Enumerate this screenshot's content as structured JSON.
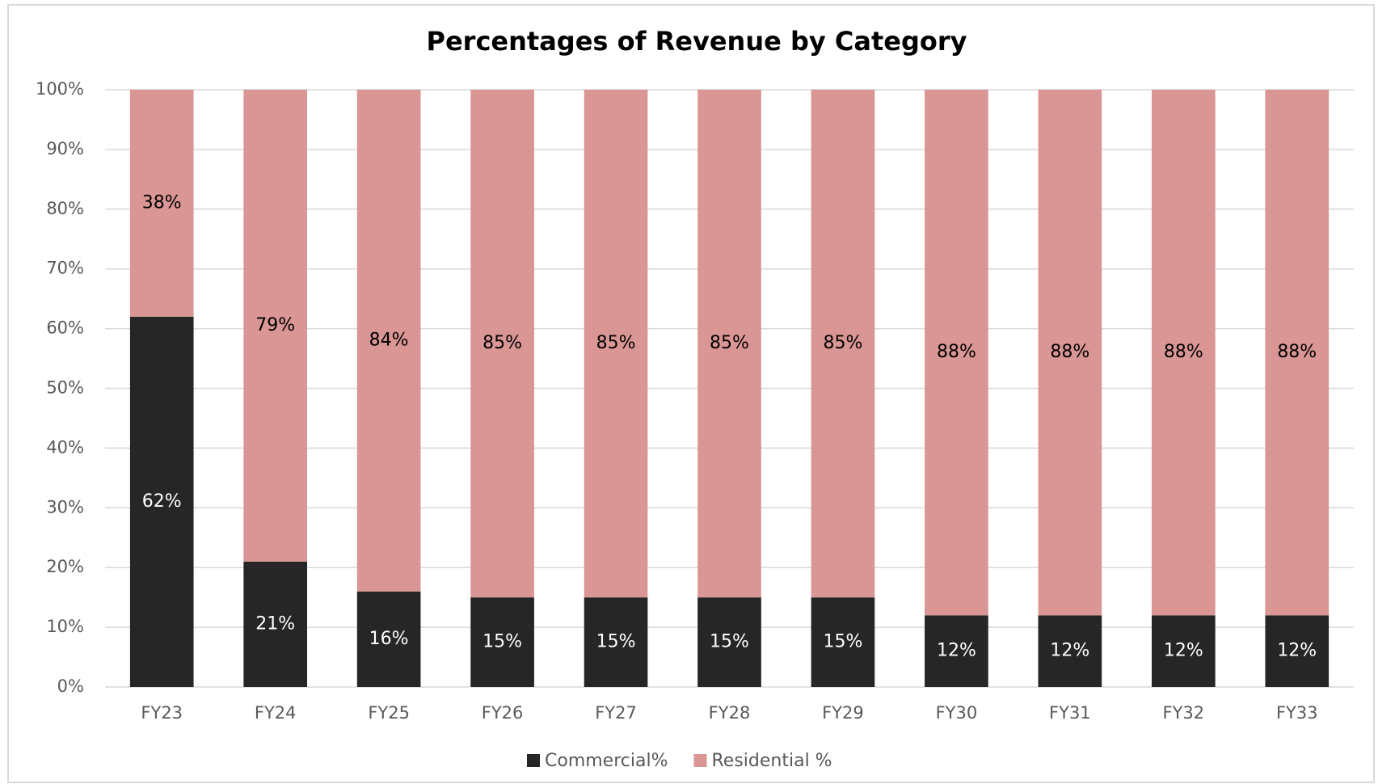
{
  "chart_data": {
    "type": "stacked_bar",
    "title": "Percentages of Revenue by Category",
    "categories": [
      "FY23",
      "FY24",
      "FY25",
      "FY26",
      "FY27",
      "FY28",
      "FY29",
      "FY30",
      "FY31",
      "FY32",
      "FY33"
    ],
    "series": [
      {
        "name": "Commercial%",
        "color": "#262626",
        "values": [
          62,
          21,
          16,
          15,
          15,
          15,
          15,
          12,
          12,
          12,
          12
        ],
        "value_labels": [
          "62%",
          "21%",
          "16%",
          "15%",
          "15%",
          "15%",
          "15%",
          "12%",
          "12%",
          "12%",
          "12%"
        ]
      },
      {
        "name": "Residential %",
        "color": "#d99694",
        "values": [
          38,
          79,
          84,
          85,
          85,
          85,
          85,
          88,
          88,
          88,
          88
        ],
        "value_labels": [
          "38%",
          "79%",
          "84%",
          "85%",
          "85%",
          "85%",
          "85%",
          "88%",
          "88%",
          "88%",
          "88%"
        ]
      }
    ],
    "ylim": [
      0,
      100
    ],
    "yticks": [
      {
        "value": 0,
        "label": "0%"
      },
      {
        "value": 10,
        "label": "10%"
      },
      {
        "value": 20,
        "label": "20%"
      },
      {
        "value": 30,
        "label": "30%"
      },
      {
        "value": 40,
        "label": "40%"
      },
      {
        "value": 50,
        "label": "50%"
      },
      {
        "value": 60,
        "label": "60%"
      },
      {
        "value": 70,
        "label": "70%"
      },
      {
        "value": 80,
        "label": "80%"
      },
      {
        "value": 90,
        "label": "90%"
      },
      {
        "value": 100,
        "label": "100%"
      }
    ],
    "grid": true,
    "legend": "bottom"
  }
}
